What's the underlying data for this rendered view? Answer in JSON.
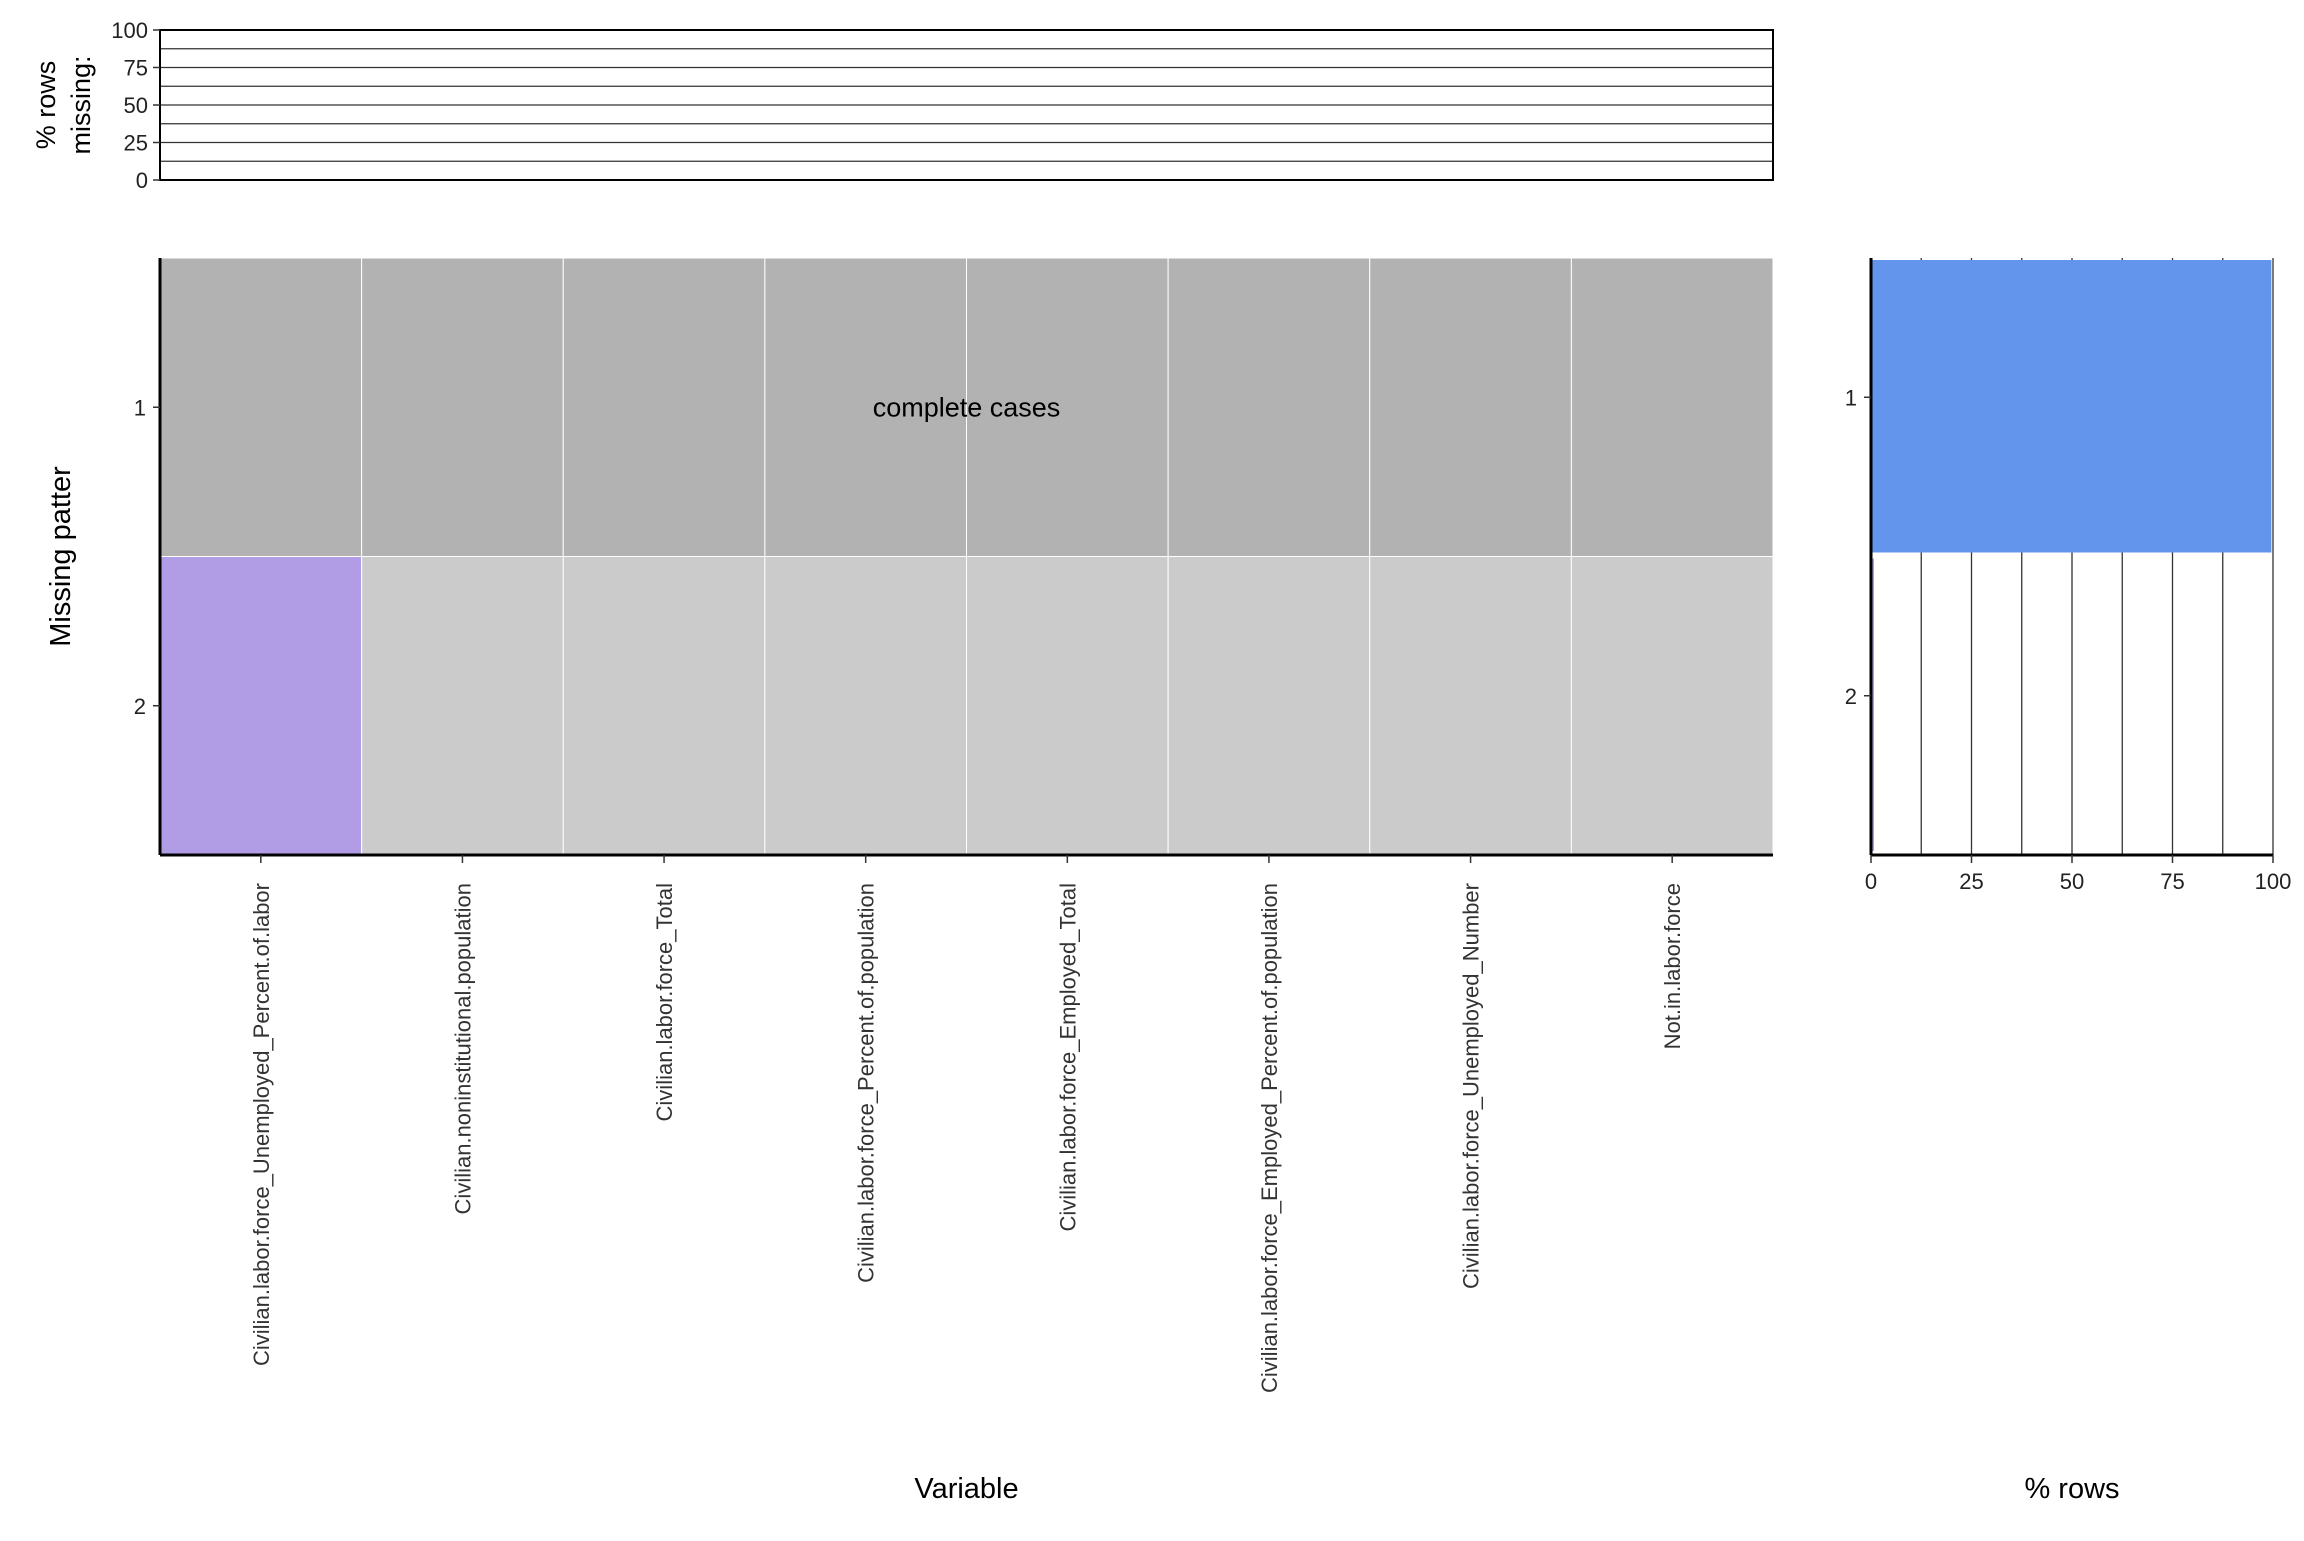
{
  "chart_data": [
    {
      "type": "bar",
      "panel": "top",
      "ylabel": "% rows\nmissing:",
      "ylim": [
        0,
        100
      ],
      "yticks": [
        0,
        25,
        50,
        75,
        100
      ],
      "categories": [
        "Civilian.labor.force_Unemployed_Percent.of.labor",
        "Civilian.noninstitutional.population",
        "Civilian.labor.force_Total",
        "Civilian.labor.force_Percent.of.population",
        "Civilian.labor.force_Employed_Total",
        "Civilian.labor.force_Employed_Percent.of.population",
        "Civilian.labor.force_Unemployed_Number",
        "Not.in.labor.force"
      ],
      "values": [
        0.4,
        0,
        0,
        0,
        0,
        0,
        0,
        0
      ],
      "grid": true
    },
    {
      "type": "heatmap",
      "panel": "main",
      "xlabel": "Variable",
      "ylabel": "Missing patter",
      "patterns": [
        "1",
        "2"
      ],
      "variables": [
        "Civilian.labor.force_Unemployed_Percent.of.labor",
        "Civilian.noninstitutional.population",
        "Civilian.labor.force_Total",
        "Civilian.labor.force_Percent.of.population",
        "Civilian.labor.force_Employed_Total",
        "Civilian.labor.force_Employed_Percent.of.population",
        "Civilian.labor.force_Unemployed_Number",
        "Not.in.labor.force"
      ],
      "matrix": [
        [
          0,
          0,
          0,
          0,
          0,
          0,
          0,
          0
        ],
        [
          1,
          0,
          0,
          0,
          0,
          0,
          0,
          0
        ]
      ],
      "annotation": "complete cases",
      "colors": {
        "complete": "#b2b2b2",
        "present": "#cbcbcb",
        "missing": "#b19ce6",
        "cell_border": "#ffffff"
      }
    },
    {
      "type": "bar",
      "panel": "right",
      "orientation": "horizontal",
      "xlabel": "% rows",
      "xlim": [
        0,
        100
      ],
      "xticks": [
        0,
        25,
        50,
        75,
        100
      ],
      "categories": [
        "1",
        "2"
      ],
      "values": [
        99.6,
        0.4
      ],
      "grid": true,
      "colors": {
        "complete": "#6495ed",
        "missing": "#b19ce6"
      }
    }
  ]
}
